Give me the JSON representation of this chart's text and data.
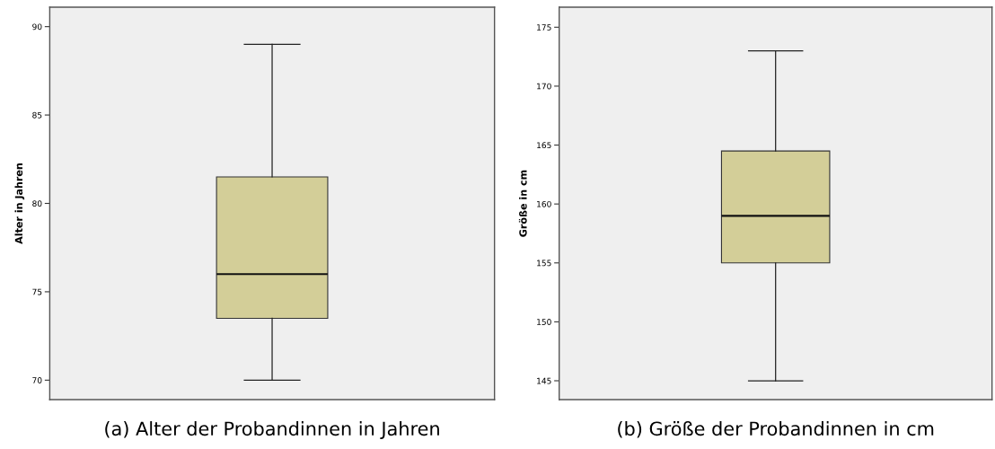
{
  "chart_data": [
    {
      "type": "box",
      "ylabel": "Alter in Jahren",
      "annotations": [
        "(a) Alter der Probandinnen in Jahren"
      ],
      "categories": [
        null
      ],
      "boxes": [
        {
          "low": 70,
          "q1": 73.5,
          "median": 76,
          "q3": 81.5,
          "high": 89
        }
      ],
      "colors": [
        "#d3ce98"
      ],
      "ylim": [
        68.9,
        91.1
      ],
      "yticks": [
        70,
        75,
        80,
        85,
        90
      ],
      "tick_labels": "y",
      "grid": false,
      "legend": false
    },
    {
      "type": "box",
      "ylabel": "Größe in cm",
      "annotations": [
        "(b) Größe der Probandinnen in cm"
      ],
      "categories": [
        null
      ],
      "boxes": [
        {
          "low": 145,
          "q1": 155,
          "median": 159,
          "q3": 164.5,
          "high": 173
        }
      ],
      "colors": [
        "#d3ce98"
      ],
      "ylim": [
        143.4,
        176.7
      ],
      "yticks": [
        145,
        150,
        155,
        160,
        165,
        170,
        175
      ],
      "tick_labels": "y",
      "grid": false,
      "legend": false
    }
  ]
}
